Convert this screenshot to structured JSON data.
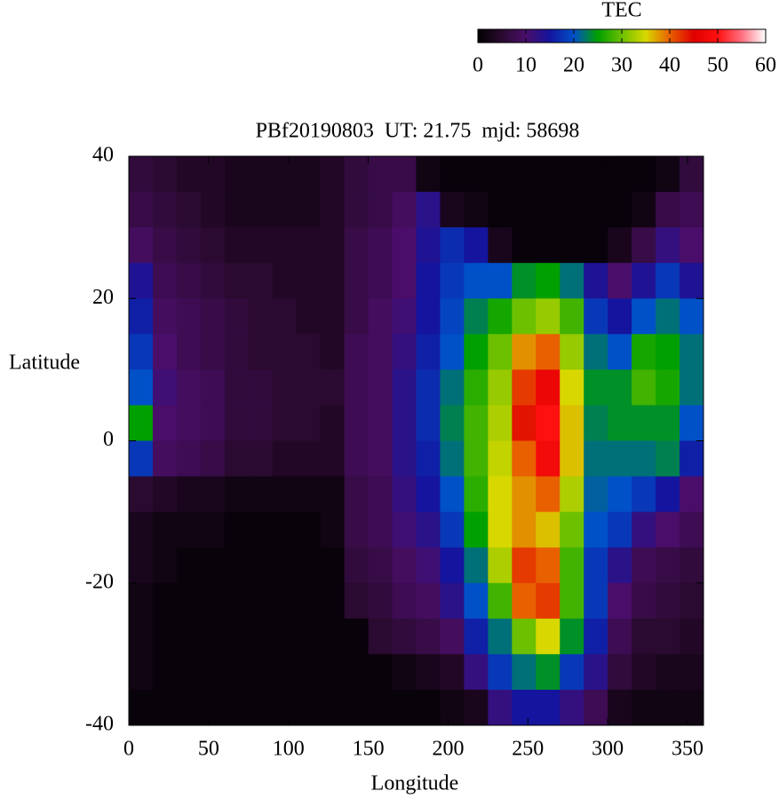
{
  "chart_data": {
    "type": "heatmap",
    "title": "PBf20190803  UT: 21.75  mjd: 58698",
    "x_label": "Longitude",
    "y_label": "Latitude",
    "colorbar_label": "TEC",
    "x": [
      7.5,
      22.5,
      37.5,
      52.5,
      67.5,
      82.5,
      97.5,
      112.5,
      127.5,
      142.5,
      157.5,
      172.5,
      187.5,
      202.5,
      217.5,
      232.5,
      247.5,
      262.5,
      277.5,
      292.5,
      307.5,
      322.5,
      337.5,
      352.5
    ],
    "y": [
      37.5,
      32.5,
      27.5,
      22.5,
      17.5,
      12.5,
      7.5,
      2.5,
      -2.5,
      -7.5,
      -12.5,
      -17.5,
      -22.5,
      -27.5,
      -32.5,
      -37.5
    ],
    "z": [
      [
        6,
        5,
        4,
        4,
        3,
        3,
        3,
        3,
        4,
        6,
        7,
        7,
        2,
        1,
        1,
        1,
        1,
        1,
        1,
        1,
        1,
        1,
        2,
        6
      ],
      [
        7,
        6,
        5,
        4,
        3,
        3,
        3,
        3,
        4,
        6,
        7,
        9,
        13,
        3,
        2,
        1,
        1,
        1,
        1,
        1,
        1,
        2,
        7,
        8
      ],
      [
        9,
        7,
        6,
        5,
        4,
        4,
        4,
        4,
        4,
        7,
        8,
        10,
        14,
        17,
        15,
        3,
        1,
        1,
        1,
        1,
        3,
        7,
        12,
        10
      ],
      [
        14,
        8,
        7,
        6,
        5,
        5,
        4,
        4,
        4,
        7,
        8,
        10,
        15,
        18,
        20,
        20,
        24,
        25,
        22,
        14,
        10,
        14,
        18,
        14
      ],
      [
        16,
        9,
        8,
        7,
        6,
        5,
        5,
        4,
        4,
        7,
        9,
        11,
        15,
        19,
        23,
        26,
        30,
        32,
        28,
        18,
        15,
        20,
        22,
        20
      ],
      [
        18,
        10,
        8,
        7,
        6,
        5,
        5,
        5,
        4,
        8,
        9,
        12,
        16,
        20,
        25,
        30,
        38,
        40,
        32,
        22,
        20,
        26,
        25,
        22
      ],
      [
        20,
        11,
        9,
        8,
        6,
        6,
        5,
        5,
        5,
        8,
        9,
        13,
        17,
        22,
        27,
        32,
        42,
        47,
        35,
        24,
        24,
        28,
        26,
        22
      ],
      [
        25,
        10,
        9,
        8,
        6,
        6,
        5,
        5,
        4,
        8,
        9,
        13,
        17,
        23,
        28,
        33,
        44,
        50,
        36,
        23,
        24,
        24,
        24,
        20
      ],
      [
        18,
        9,
        8,
        7,
        5,
        5,
        4,
        4,
        4,
        8,
        9,
        13,
        16,
        22,
        28,
        34,
        40,
        48,
        36,
        22,
        22,
        22,
        23,
        16
      ],
      [
        5,
        4,
        3,
        3,
        2,
        2,
        2,
        2,
        2,
        7,
        8,
        12,
        15,
        20,
        27,
        35,
        38,
        40,
        33,
        21,
        20,
        18,
        15,
        10
      ],
      [
        3,
        2,
        2,
        2,
        1,
        1,
        1,
        1,
        2,
        7,
        8,
        11,
        13,
        18,
        25,
        35,
        38,
        36,
        30,
        20,
        18,
        12,
        10,
        8
      ],
      [
        3,
        2,
        1,
        1,
        1,
        1,
        1,
        1,
        1,
        6,
        7,
        9,
        11,
        15,
        22,
        33,
        42,
        40,
        28,
        18,
        13,
        8,
        7,
        6
      ],
      [
        2,
        1,
        1,
        1,
        1,
        1,
        1,
        1,
        1,
        5,
        6,
        8,
        9,
        13,
        20,
        28,
        40,
        42,
        28,
        18,
        10,
        7,
        6,
        5
      ],
      [
        2,
        1,
        1,
        1,
        1,
        1,
        1,
        1,
        1,
        1,
        5,
        6,
        7,
        9,
        16,
        22,
        30,
        35,
        24,
        16,
        8,
        5,
        5,
        4
      ],
      [
        2,
        1,
        1,
        1,
        1,
        1,
        1,
        1,
        1,
        1,
        1,
        2,
        3,
        4,
        12,
        18,
        22,
        24,
        18,
        13,
        6,
        4,
        3,
        3
      ],
      [
        1,
        1,
        1,
        1,
        1,
        1,
        1,
        1,
        1,
        1,
        1,
        1,
        1,
        2,
        3,
        12,
        15,
        15,
        12,
        8,
        3,
        2,
        2,
        2
      ]
    ],
    "xlim": [
      0,
      360
    ],
    "xticks": [
      0,
      50,
      100,
      150,
      200,
      250,
      300,
      350
    ],
    "ylim": [
      -40,
      40
    ],
    "yticks": [
      -40,
      -20,
      0,
      20,
      40
    ],
    "zlim": [
      0,
      60
    ],
    "zticks": [
      0,
      10,
      20,
      30,
      40,
      50,
      60
    ],
    "colormap": [
      "#000000",
      "#2a0a30",
      "#4a0e6a",
      "#14149e",
      "#0050c8",
      "#00a000",
      "#6cc000",
      "#d8d800",
      "#e86000",
      "#e00000",
      "#ff1010",
      "#ff7080",
      "#ffffff"
    ]
  }
}
